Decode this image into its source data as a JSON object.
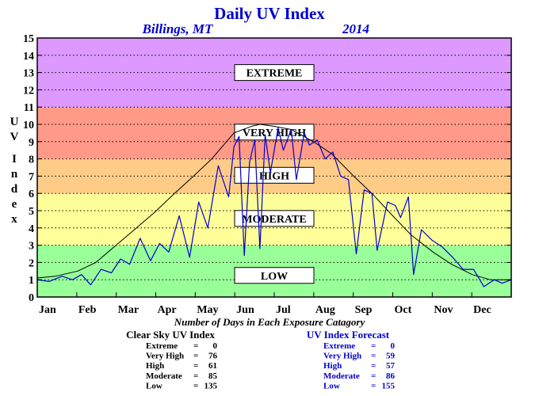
{
  "chart_data": {
    "type": "line",
    "title": "Daily UV Index",
    "location": "Billings, MT",
    "year": "2014",
    "ylabel": "UV Index",
    "xlabel": "Number of Days in Each Exposure Catagory",
    "ylim": [
      0,
      15
    ],
    "yticks": [
      "0",
      "1",
      "2",
      "3",
      "4",
      "5",
      "6",
      "7",
      "8",
      "9",
      "10",
      "11",
      "12",
      "13",
      "14",
      "15"
    ],
    "x_categories": [
      "Jan",
      "Feb",
      "Mar",
      "Apr",
      "May",
      "Jun",
      "Jul",
      "Aug",
      "Sep",
      "Oct",
      "Nov",
      "Dec"
    ],
    "grid": true,
    "bands": [
      {
        "label": "LOW",
        "from": 0,
        "to": 3,
        "color": "#99ff99"
      },
      {
        "label": "MODERATE",
        "from": 3,
        "to": 6,
        "color": "#ffff99"
      },
      {
        "label": "HIGH",
        "from": 6,
        "to": 8,
        "color": "#ffcc88"
      },
      {
        "label": "VERY HIGH",
        "from": 8,
        "to": 11,
        "color": "#ff9988"
      },
      {
        "label": "EXTREME",
        "from": 11,
        "to": 15,
        "color": "#dd99ff"
      }
    ],
    "series": [
      {
        "name": "Clear Sky UV Index",
        "color": "#000000",
        "days": [
          1,
          15,
          32,
          46,
          60,
          74,
          91,
          105,
          121,
          135,
          152,
          166,
          172,
          182,
          196,
          213,
          227,
          244,
          258,
          274,
          288,
          305,
          319,
          335,
          349,
          365
        ],
        "values": [
          1.1,
          1.2,
          1.5,
          2.0,
          2.9,
          3.8,
          4.9,
          5.9,
          7.0,
          8.0,
          9.5,
          9.9,
          10.0,
          9.9,
          9.7,
          9.0,
          8.3,
          7.0,
          6.0,
          4.7,
          3.6,
          2.6,
          1.9,
          1.3,
          1.0,
          1.0
        ]
      },
      {
        "name": "UV Index Forecast",
        "color": "#0000cc",
        "days": [
          1,
          10,
          20,
          28,
          35,
          42,
          50,
          58,
          65,
          72,
          80,
          88,
          95,
          102,
          110,
          118,
          125,
          132,
          140,
          148,
          152,
          156,
          160,
          164,
          168,
          172,
          176,
          180,
          186,
          190,
          196,
          200,
          206,
          210,
          216,
          222,
          228,
          234,
          240,
          246,
          252,
          258,
          262,
          270,
          276,
          280,
          286,
          290,
          296,
          304,
          312,
          320,
          328,
          336,
          344,
          352,
          358,
          365
        ],
        "values": [
          1.0,
          0.9,
          1.2,
          1.0,
          1.3,
          0.7,
          1.6,
          1.4,
          2.2,
          1.9,
          3.4,
          2.1,
          3.1,
          2.6,
          4.7,
          2.3,
          5.5,
          4.0,
          7.6,
          5.8,
          8.7,
          9.3,
          2.4,
          7.8,
          9.1,
          2.8,
          9.4,
          7.2,
          9.8,
          8.5,
          9.7,
          6.8,
          9.5,
          8.8,
          9.1,
          8.0,
          8.4,
          7.0,
          6.8,
          2.5,
          6.2,
          6.0,
          2.7,
          5.5,
          5.3,
          4.6,
          5.8,
          1.3,
          3.9,
          3.3,
          2.9,
          2.3,
          1.6,
          1.6,
          0.6,
          1.0,
          0.8,
          1.0
        ]
      }
    ]
  },
  "stats": {
    "clear": {
      "title": "Clear Sky UV Index",
      "rows": [
        {
          "label": "Extreme",
          "eq": "=",
          "value": "0"
        },
        {
          "label": "Very High",
          "eq": "=",
          "value": "76"
        },
        {
          "label": "High",
          "eq": "=",
          "value": "61"
        },
        {
          "label": "Moderate",
          "eq": "=",
          "value": "85"
        },
        {
          "label": "Low",
          "eq": "=",
          "value": "135"
        }
      ]
    },
    "forecast": {
      "title": "UV Index Forecast",
      "rows": [
        {
          "label": "Extreme",
          "eq": "=",
          "value": "0"
        },
        {
          "label": "Very High",
          "eq": "=",
          "value": "59"
        },
        {
          "label": "High",
          "eq": "=",
          "value": "57"
        },
        {
          "label": "Moderate",
          "eq": "=",
          "value": "86"
        },
        {
          "label": "Low",
          "eq": "=",
          "value": "155"
        }
      ]
    }
  }
}
